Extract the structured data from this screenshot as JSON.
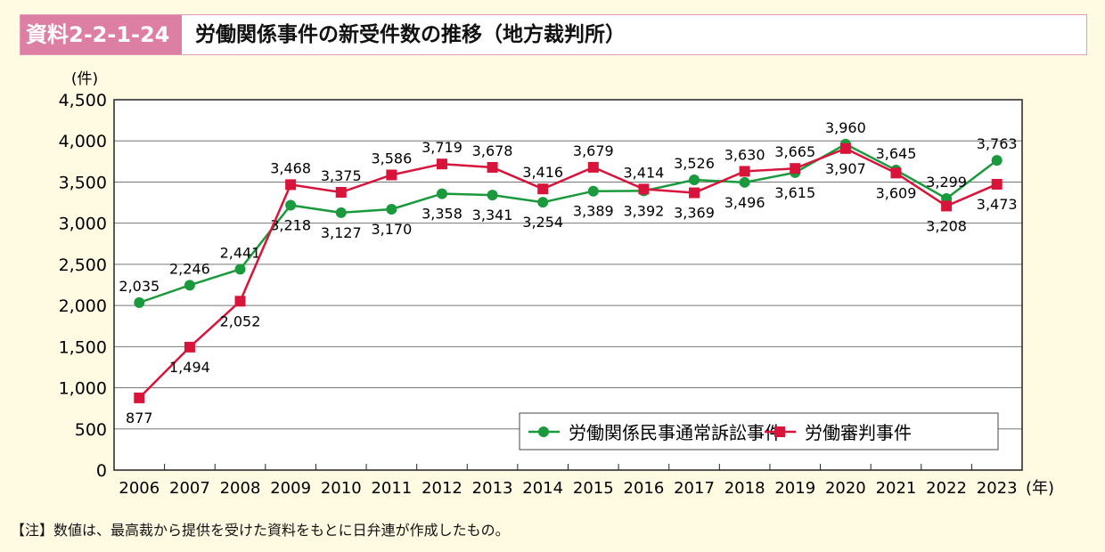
{
  "header": {
    "label": "資料2-2-1-24",
    "title": "労働関係事件の新受件数の推移（地方裁判所）"
  },
  "note": "【注】数値は、最高裁から提供を受けた資料をもとに日弁連が作成したもの。",
  "colors": {
    "green": "#1a9a3c",
    "red": "#d9143a",
    "header_pink": "#dd7fa2",
    "background": "#fffbe3"
  },
  "chart_data": {
    "type": "line",
    "title": "労働関係事件の新受件数の推移（地方裁判所）",
    "ylabel": "(件)",
    "xlabel": "(年)",
    "ylim": [
      0,
      4500
    ],
    "yticks": [
      "0",
      "500",
      "1,000",
      "1,500",
      "2,000",
      "2,500",
      "3,000",
      "3,500",
      "4,000",
      "4,500"
    ],
    "grid": true,
    "legend": "bottom-right",
    "categories": [
      "2006",
      "2007",
      "2008",
      "2009",
      "2010",
      "2011",
      "2012",
      "2013",
      "2014",
      "2015",
      "2016",
      "2017",
      "2018",
      "2019",
      "2020",
      "2021",
      "2022",
      "2023"
    ],
    "series": [
      {
        "name": "労働関係民事通常訴訟事件",
        "marker": "circle",
        "color": "#1a9a3c",
        "values": [
          2035,
          2246,
          2441,
          3218,
          3127,
          3170,
          3358,
          3341,
          3254,
          3389,
          3392,
          3526,
          3496,
          3615,
          3960,
          3645,
          3299,
          3763
        ],
        "labels": [
          "2,035",
          "2,246",
          "2,441",
          "3,218",
          "3,127",
          "3,170",
          "3,358",
          "3,341",
          "3,254",
          "3,389",
          "3,392",
          "3,526",
          "3,496",
          "3,615",
          "3,960",
          "3,645",
          "3,299",
          "3,763"
        ]
      },
      {
        "name": "労働審判事件",
        "marker": "square",
        "color": "#d9143a",
        "values": [
          877,
          1494,
          2052,
          3468,
          3375,
          3586,
          3719,
          3678,
          3416,
          3679,
          3414,
          3369,
          3630,
          3665,
          3907,
          3609,
          3208,
          3473
        ],
        "labels": [
          "877",
          "1,494",
          "2,052",
          "3,468",
          "3,375",
          "3,586",
          "3,719",
          "3,678",
          "3,416",
          "3,679",
          "3,414",
          "3,369",
          "3,630",
          "3,665",
          "3,907",
          "3,609",
          "3,208",
          "3,473"
        ]
      }
    ]
  }
}
